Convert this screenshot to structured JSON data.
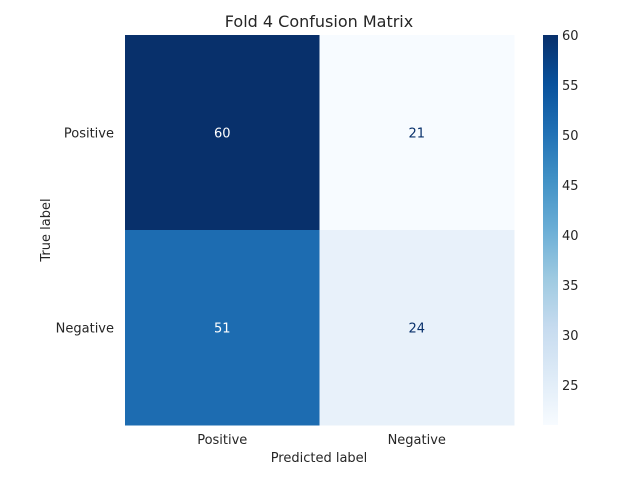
{
  "chart_data": {
    "type": "heatmap",
    "title": "Fold 4 Confusion Matrix",
    "xlabel": "Predicted label",
    "ylabel": "True label",
    "x_categories": [
      "Positive",
      "Negative"
    ],
    "y_categories": [
      "Positive",
      "Negative"
    ],
    "values": [
      [
        60,
        21
      ],
      [
        51,
        24
      ]
    ],
    "colorbar": {
      "min": 21,
      "max": 60,
      "ticks": [
        25,
        30,
        35,
        40,
        45,
        50,
        55,
        60
      ],
      "colormap": "Blues"
    },
    "colors": {
      "low": "#f7fbff",
      "high": "#08306b",
      "dark_text": "#08306b",
      "light_text": "#ffffff"
    }
  }
}
